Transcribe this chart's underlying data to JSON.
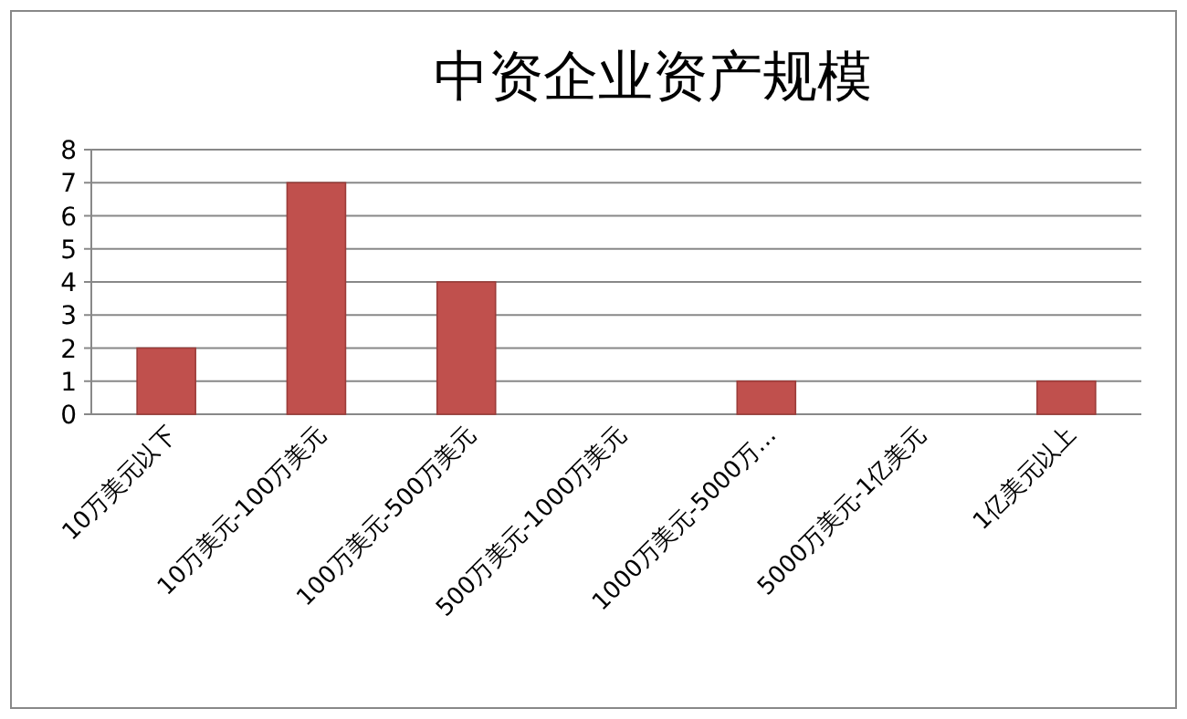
{
  "chart_data": {
    "type": "bar",
    "title": "中资企业资产规模",
    "categories": [
      "10万美元以下",
      "10万美元-100万美元",
      "100万美元-500万美元",
      "500万美元-1000万美元",
      "1000万美元-5000万…",
      "5000万美元-1亿美元",
      "1亿美元以上"
    ],
    "values": [
      2,
      7,
      4,
      0,
      1,
      0,
      1
    ],
    "color": "#c0504d",
    "ylim": [
      0,
      8
    ],
    "yticks": [
      0,
      1,
      2,
      3,
      4,
      5,
      6,
      7,
      8
    ],
    "grid": "y"
  }
}
